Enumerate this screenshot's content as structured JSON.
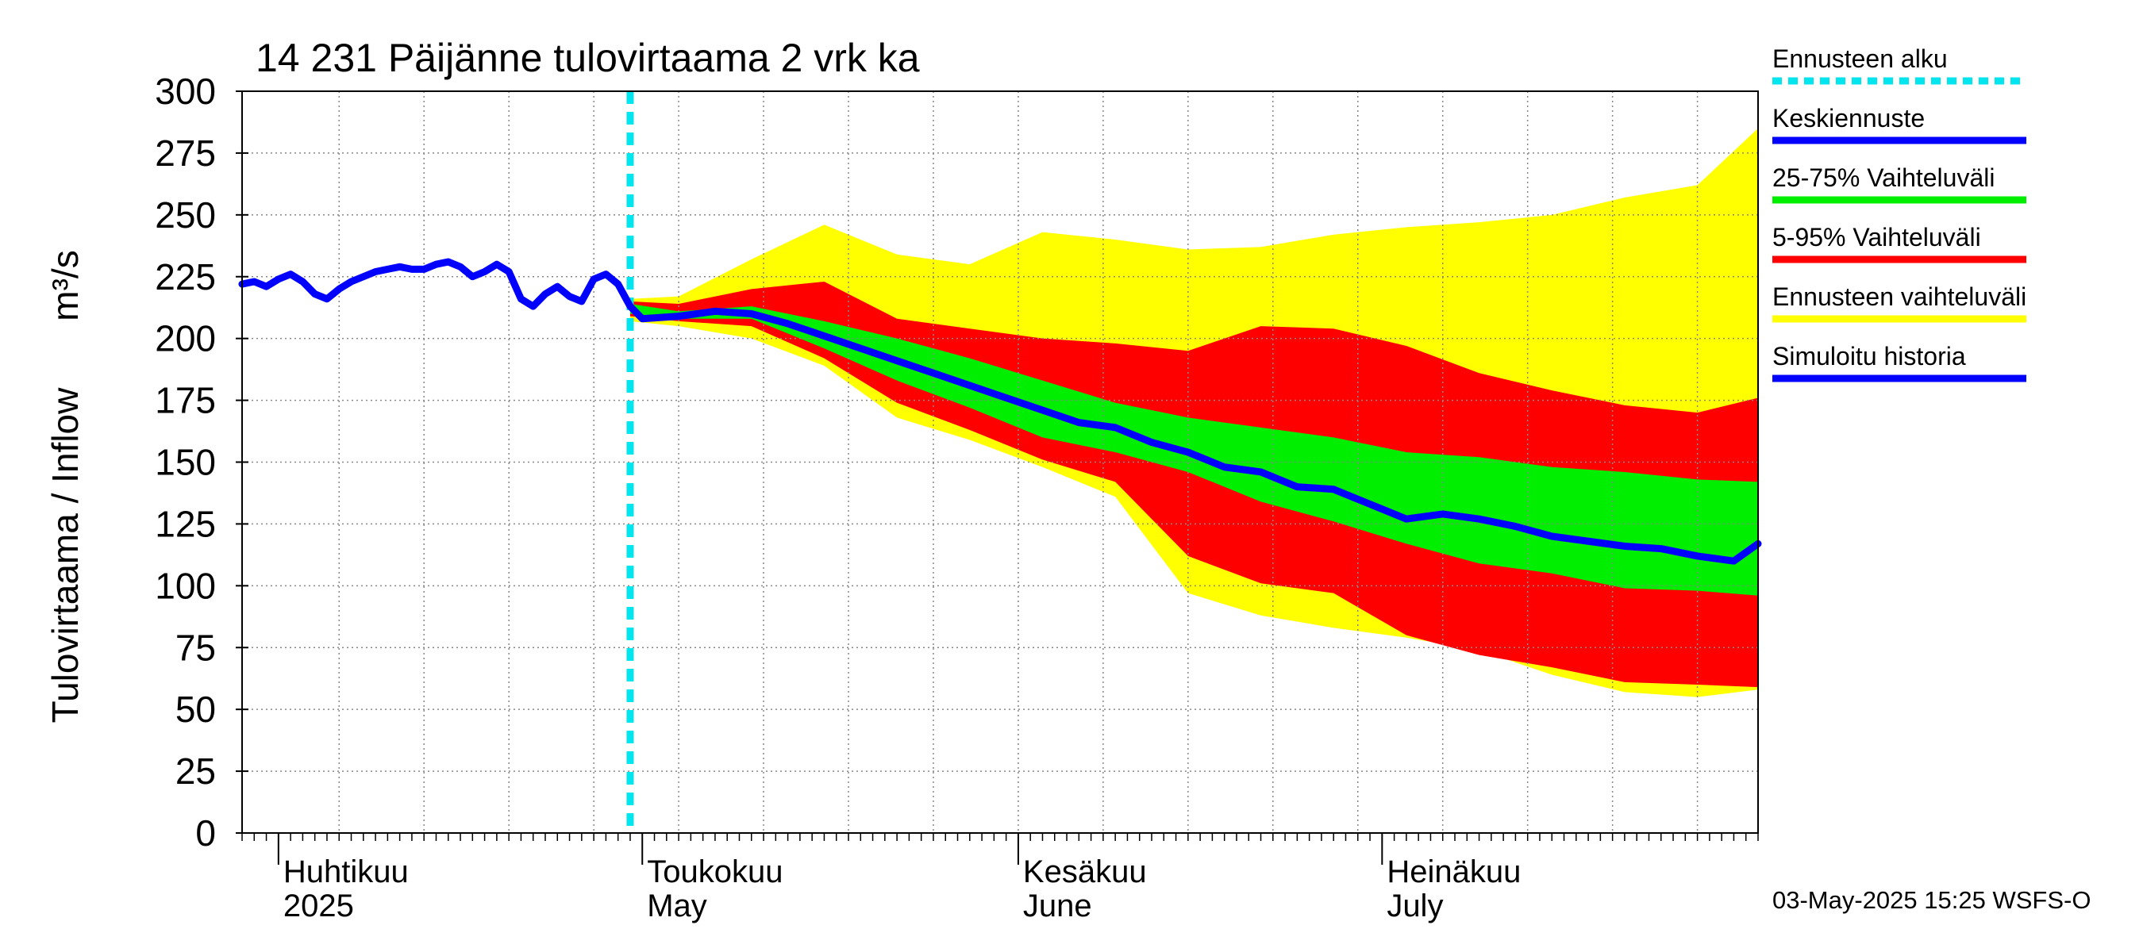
{
  "chart_data": {
    "type": "area",
    "title": "14 231 Päijänne tulovirtaama 2 vrk ka",
    "ylabel": "Tulovirtaama / Inflow",
    "yunit": "m³/s",
    "ylim": [
      0,
      300
    ],
    "yticks": [
      0,
      25,
      50,
      75,
      100,
      125,
      150,
      175,
      200,
      225,
      250,
      275,
      300
    ],
    "xlim": [
      "2025-03-29",
      "2025-08-01"
    ],
    "grid": true,
    "month_labels": [
      {
        "fi": "Huhtikuu",
        "en": "2025",
        "date": "2025-04-01"
      },
      {
        "fi": "Toukokuu",
        "en": "May",
        "date": "2025-05-01"
      },
      {
        "fi": "Kesäkuu",
        "en": "June",
        "date": "2025-06-01"
      },
      {
        "fi": "Heinäkuu",
        "en": "July",
        "date": "2025-07-01"
      }
    ],
    "forecast_start": "2025-04-30",
    "legend": [
      {
        "label": "Ennusteen alku",
        "color": "#00e5ee",
        "style": "dotted"
      },
      {
        "label": "Keskiennuste",
        "color": "#0000ff",
        "style": "line"
      },
      {
        "label": "25-75% Vaihteluväli",
        "color": "#00ee00",
        "style": "band"
      },
      {
        "label": "5-95% Vaihteluväli",
        "color": "#ff0000",
        "style": "band"
      },
      {
        "label": "Ennusteen vaihteluväli",
        "color": "#ffff00",
        "style": "band"
      },
      {
        "label": "Simuloitu historia",
        "color": "#0000ff",
        "style": "line"
      }
    ],
    "legend_position": "right",
    "series": [
      {
        "key": "history",
        "x": [
          "2025-03-29",
          "2025-03-30",
          "2025-03-31",
          "2025-04-01",
          "2025-04-02",
          "2025-04-03",
          "2025-04-04",
          "2025-04-05",
          "2025-04-06",
          "2025-04-07",
          "2025-04-08",
          "2025-04-09",
          "2025-04-10",
          "2025-04-11",
          "2025-04-12",
          "2025-04-13",
          "2025-04-14",
          "2025-04-15",
          "2025-04-16",
          "2025-04-17",
          "2025-04-18",
          "2025-04-19",
          "2025-04-20",
          "2025-04-21",
          "2025-04-22",
          "2025-04-23",
          "2025-04-24",
          "2025-04-25",
          "2025-04-26",
          "2025-04-27",
          "2025-04-28",
          "2025-04-29",
          "2025-04-30"
        ],
        "values": [
          222,
          223,
          221,
          224,
          226,
          223,
          218,
          216,
          220,
          223,
          225,
          227,
          228,
          229,
          228,
          228,
          230,
          231,
          229,
          225,
          227,
          230,
          227,
          216,
          213,
          218,
          221,
          217,
          215,
          224,
          226,
          222,
          213
        ]
      },
      {
        "key": "median",
        "x": [
          "2025-04-30",
          "2025-05-01",
          "2025-05-04",
          "2025-05-07",
          "2025-05-10",
          "2025-05-13",
          "2025-05-16",
          "2025-05-19",
          "2025-05-22",
          "2025-05-25",
          "2025-05-28",
          "2025-05-31",
          "2025-06-03",
          "2025-06-06",
          "2025-06-09",
          "2025-06-12",
          "2025-06-15",
          "2025-06-18",
          "2025-06-21",
          "2025-06-24",
          "2025-06-27",
          "2025-06-30",
          "2025-07-03",
          "2025-07-06",
          "2025-07-09",
          "2025-07-12",
          "2025-07-15",
          "2025-07-18",
          "2025-07-21",
          "2025-07-24",
          "2025-07-27",
          "2025-07-30",
          "2025-08-01"
        ],
        "values": [
          213,
          208,
          209,
          211,
          210,
          206,
          201,
          196,
          191,
          186,
          181,
          176,
          171,
          166,
          164,
          158,
          154,
          148,
          146,
          140,
          139,
          133,
          127,
          129,
          127,
          124,
          120,
          118,
          116,
          115,
          112,
          110,
          117
        ]
      },
      {
        "key": "p25_75",
        "x": [
          "2025-04-30",
          "2025-05-04",
          "2025-05-10",
          "2025-05-16",
          "2025-05-22",
          "2025-05-28",
          "2025-06-03",
          "2025-06-09",
          "2025-06-15",
          "2025-06-21",
          "2025-06-27",
          "2025-07-03",
          "2025-07-09",
          "2025-07-15",
          "2025-07-21",
          "2025-07-27",
          "2025-08-01"
        ],
        "lower": [
          210,
          208,
          208,
          196,
          183,
          172,
          160,
          154,
          146,
          134,
          126,
          117,
          109,
          105,
          99,
          98,
          96
        ],
        "upper": [
          214,
          211,
          213,
          207,
          200,
          192,
          183,
          174,
          168,
          164,
          160,
          154,
          152,
          148,
          146,
          143,
          142
        ]
      },
      {
        "key": "p5_95",
        "x": [
          "2025-04-30",
          "2025-05-04",
          "2025-05-10",
          "2025-05-16",
          "2025-05-22",
          "2025-05-28",
          "2025-06-03",
          "2025-06-09",
          "2025-06-15",
          "2025-06-21",
          "2025-06-27",
          "2025-07-03",
          "2025-07-09",
          "2025-07-15",
          "2025-07-21",
          "2025-07-27",
          "2025-08-01"
        ],
        "lower": [
          209,
          207,
          205,
          192,
          174,
          163,
          151,
          142,
          112,
          101,
          97,
          80,
          72,
          67,
          61,
          60,
          59
        ],
        "upper": [
          215,
          214,
          220,
          223,
          208,
          204,
          200,
          198,
          195,
          205,
          204,
          197,
          186,
          179,
          173,
          170,
          176
        ]
      },
      {
        "key": "full_range",
        "x": [
          "2025-04-30",
          "2025-05-04",
          "2025-05-10",
          "2025-05-16",
          "2025-05-22",
          "2025-05-28",
          "2025-06-03",
          "2025-06-09",
          "2025-06-15",
          "2025-06-21",
          "2025-06-27",
          "2025-07-03",
          "2025-07-09",
          "2025-07-15",
          "2025-07-21",
          "2025-07-27",
          "2025-08-01"
        ],
        "lower": [
          207,
          205,
          200,
          189,
          168,
          159,
          148,
          136,
          97,
          88,
          83,
          79,
          74,
          64,
          57,
          55,
          58
        ],
        "upper": [
          216,
          217,
          232,
          246,
          234,
          230,
          243,
          240,
          236,
          237,
          242,
          245,
          247,
          250,
          257,
          262,
          285
        ]
      }
    ]
  },
  "footer": {
    "timestamp": "03-May-2025 15:25 WSFS-O"
  },
  "colors": {
    "yellow": "#ffff00",
    "red": "#ff0000",
    "green": "#00ee00",
    "blue": "#0000ff",
    "cyan": "#00e5ee",
    "grid": "#888888"
  }
}
